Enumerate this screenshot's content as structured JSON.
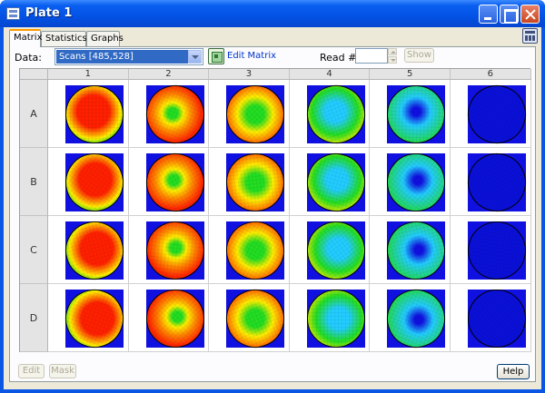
{
  "window": {
    "title": "Plate 1"
  },
  "tabs": [
    {
      "label": "Matrix",
      "active": true
    },
    {
      "label": "Statistics",
      "active": false
    },
    {
      "label": "Graphs",
      "active": false
    }
  ],
  "toolbar": {
    "data_label": "Data:",
    "data_value": "Scans [485,528]",
    "edit_matrix_label": "Edit Matrix",
    "read_label": "Read #:",
    "read_value": "",
    "show_label": "Show"
  },
  "grid": {
    "columns": [
      "1",
      "2",
      "3",
      "4",
      "5",
      "6"
    ],
    "rows": [
      "A",
      "B",
      "C",
      "D"
    ],
    "heat_colors": {
      "red": "#ff2000",
      "orange": "#ff8c00",
      "yellow": "#ffee00",
      "green": "#22dd22",
      "cyan": "#22ccff",
      "blue": "#1010e0"
    }
  },
  "footer": {
    "edit_label": "Edit",
    "mask_label": "Mask",
    "help_label": "Help"
  }
}
